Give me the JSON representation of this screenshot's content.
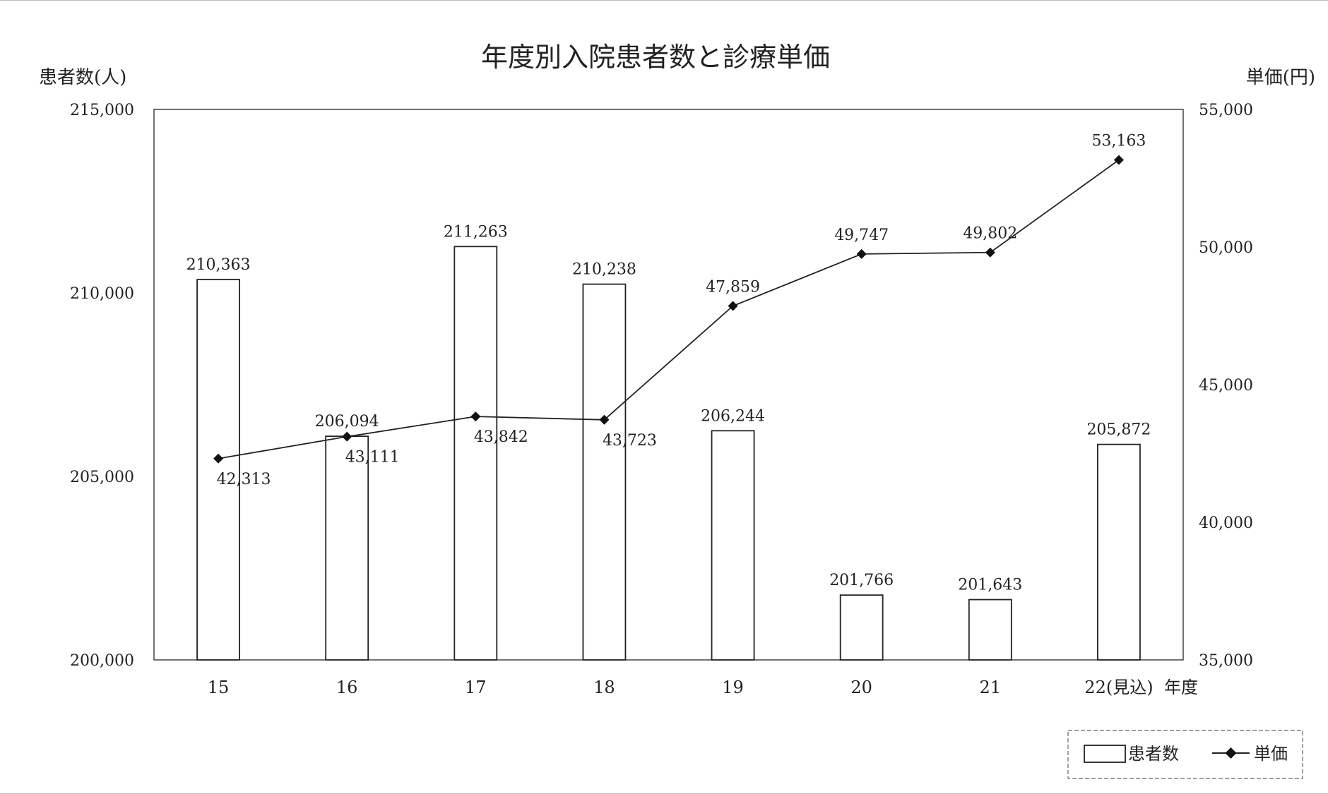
{
  "chart_data": {
    "type": "bar+line",
    "title": "年度別入院患者数と診療単価",
    "ylabel_left": "患者数(人)",
    "ylabel_right": "単価(円)",
    "xlabel": "年度",
    "categories": [
      "15",
      "16",
      "17",
      "18",
      "19",
      "20",
      "21",
      "22(見込)"
    ],
    "ylim_left": [
      200000,
      215000
    ],
    "ylim_right": [
      35000,
      55000
    ],
    "yticks_left": [
      "200,000",
      "205,000",
      "210,000",
      "215,000"
    ],
    "yticks_right": [
      "35,000",
      "40,000",
      "45,000",
      "50,000",
      "55,000"
    ],
    "series": [
      {
        "name": "患者数",
        "type": "bar",
        "axis": "left",
        "values": [
          210363,
          206094,
          211263,
          210238,
          206244,
          201766,
          201643,
          205872
        ],
        "labels": [
          "210,363",
          "206,094",
          "211,263",
          "210,238",
          "206,244",
          "201,766",
          "201,643",
          "205,872"
        ]
      },
      {
        "name": "単価",
        "type": "line",
        "axis": "right",
        "marker": "diamond",
        "values": [
          42313,
          43111,
          43842,
          43723,
          47859,
          49747,
          49802,
          53163
        ],
        "labels": [
          "42,313",
          "43,111",
          "43,842",
          "43,723",
          "47,859",
          "49,747",
          "49,802",
          "53,163"
        ]
      }
    ],
    "grid": false,
    "legend_position": "bottom-right"
  }
}
